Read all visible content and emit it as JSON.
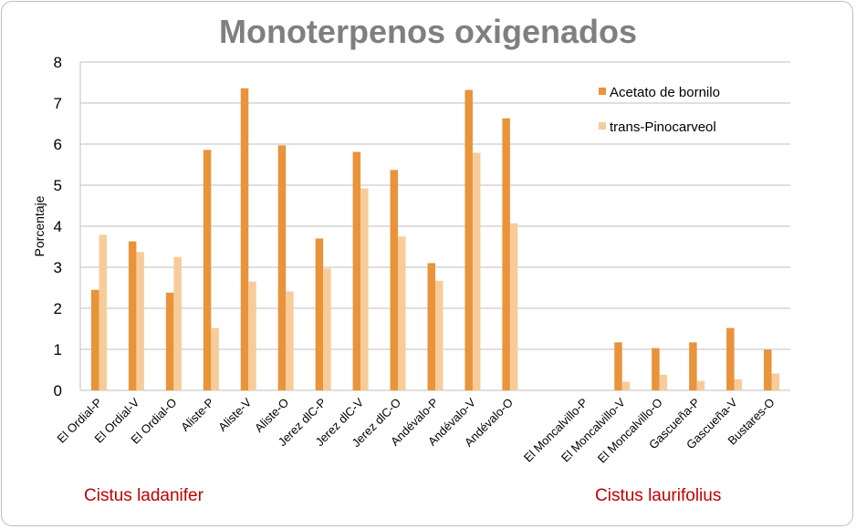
{
  "chart_data": {
    "type": "bar",
    "title": "Monoterpenos oxigenados",
    "ylabel": "Porcentaje",
    "xlabel": "",
    "ylim": [
      0,
      8
    ],
    "yticks": [
      0,
      1,
      2,
      3,
      4,
      5,
      6,
      7,
      8
    ],
    "grid": true,
    "legend_position": "top-right",
    "categories": [
      "El Ordial-P",
      "El Ordial-V",
      "El Ordial-O",
      "Aliste-P",
      "Aliste-V",
      "Aliste-O",
      "Jerez dlC-P",
      "Jerez dlC-V",
      "Jerez dlC-O",
      "Andévalo-P",
      "Andévalo-V",
      "Andévalo-O",
      "",
      "El Moncalvillo-P",
      "El Moncalvillo-V",
      "El Moncalvillo-O",
      "Gascueña-P",
      "Gascueña-V",
      "Bustares-O"
    ],
    "series": [
      {
        "name": "Acetato de bornilo",
        "color": "#e9933a",
        "values": [
          2.45,
          3.63,
          2.38,
          5.86,
          7.36,
          5.97,
          3.7,
          5.81,
          5.37,
          3.1,
          7.32,
          6.63,
          null,
          0,
          1.17,
          1.03,
          1.17,
          1.52,
          0.99
        ]
      },
      {
        "name": "trans-Pinocarveol",
        "color": "#f8cc9a",
        "values": [
          3.79,
          3.37,
          3.25,
          1.52,
          2.65,
          2.41,
          2.97,
          4.92,
          3.75,
          2.67,
          5.79,
          4.07,
          null,
          0,
          0.21,
          0.38,
          0.23,
          0.27,
          0.41
        ]
      }
    ],
    "groups": [
      "Cistus ladanifer",
      "Cistus laurifolius"
    ]
  }
}
